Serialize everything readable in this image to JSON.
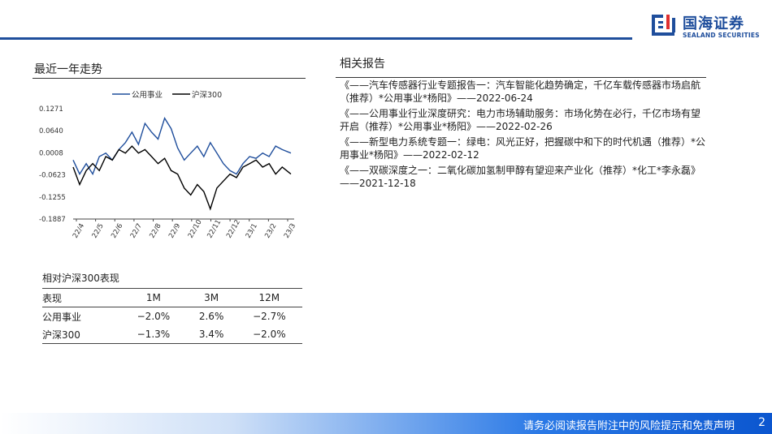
{
  "header": {
    "logo_cn": "国海证券",
    "logo_en": "SEALAND SECURITIES"
  },
  "trend_section": {
    "title": "最近一年走势"
  },
  "chart_data": {
    "type": "line",
    "legend_position": "top",
    "x_ticks": [
      "22/4",
      "22/5",
      "22/6",
      "22/7",
      "22/8",
      "22/9",
      "22/10",
      "22/11",
      "22/12",
      "23/1",
      "23/2",
      "23/3"
    ],
    "y_ticks": [
      "0.1271",
      "0.0640",
      "0.0008",
      "-0.0623",
      "-0.1255",
      "-0.1887"
    ],
    "ylim": [
      -0.1887,
      0.1271
    ],
    "grid": false,
    "series": [
      {
        "name": "公用事业",
        "color": "#1f4e9c",
        "x": [
          0,
          0.03,
          0.06,
          0.09,
          0.12,
          0.15,
          0.18,
          0.21,
          0.24,
          0.27,
          0.3,
          0.33,
          0.36,
          0.39,
          0.42,
          0.45,
          0.48,
          0.51,
          0.54,
          0.57,
          0.6,
          0.63,
          0.66,
          0.69,
          0.72,
          0.75,
          0.78,
          0.81,
          0.84,
          0.87,
          0.9,
          0.93,
          0.96,
          1.0
        ],
        "values": [
          -0.02,
          -0.06,
          -0.03,
          -0.06,
          -0.01,
          0.0,
          -0.02,
          0.01,
          0.03,
          0.06,
          0.025,
          0.085,
          0.06,
          0.04,
          0.1,
          0.07,
          0.015,
          -0.02,
          0.0,
          0.02,
          -0.01,
          0.03,
          0.0,
          -0.03,
          -0.05,
          -0.06,
          -0.03,
          -0.01,
          -0.015,
          0.0,
          -0.01,
          0.02,
          0.01,
          0.0
        ]
      },
      {
        "name": "沪深300",
        "color": "#000000",
        "x": [
          0,
          0.03,
          0.06,
          0.09,
          0.12,
          0.15,
          0.18,
          0.21,
          0.24,
          0.27,
          0.3,
          0.33,
          0.36,
          0.39,
          0.42,
          0.45,
          0.48,
          0.51,
          0.54,
          0.57,
          0.6,
          0.63,
          0.66,
          0.69,
          0.72,
          0.75,
          0.78,
          0.81,
          0.84,
          0.87,
          0.9,
          0.93,
          0.96,
          1.0
        ],
        "values": [
          -0.04,
          -0.09,
          -0.05,
          -0.03,
          -0.05,
          -0.01,
          -0.02,
          0.01,
          0.0,
          0.02,
          0.0,
          0.01,
          -0.01,
          -0.03,
          -0.015,
          -0.05,
          -0.06,
          -0.1,
          -0.12,
          -0.09,
          -0.11,
          -0.16,
          -0.1,
          -0.08,
          -0.06,
          -0.07,
          -0.04,
          -0.03,
          -0.02,
          -0.04,
          -0.03,
          -0.06,
          -0.04,
          -0.06
        ]
      }
    ]
  },
  "performance": {
    "title": "相对沪深300表现",
    "headers": [
      "表现",
      "1M",
      "3M",
      "12M"
    ],
    "rows": [
      [
        "公用事业",
        "−2.0%",
        "2.6%",
        "−2.7%"
      ],
      [
        "沪深300",
        "−1.3%",
        "3.4%",
        "−2.0%"
      ]
    ]
  },
  "reports": {
    "title": "相关报告",
    "items": [
      "《——汽车传感器行业专题报告一：汽车智能化趋势确定，千亿车载传感器市场启航（推荐）*公用事业*杨阳》——2022-06-24",
      "《——公用事业行业深度研究：电力市场辅助服务：市场化势在必行，千亿市场有望开启（推荐）*公用事业*杨阳》——2022-02-26",
      "《——新型电力系统专题一：绿电：风光正好，把握碳中和下的时代机遇（推荐）*公用事业*杨阳》——2022-02-12",
      "《——双碳深度之一：二氧化碳加氢制甲醇有望迎来产业化（推荐）*化工*李永磊》——2021-12-18"
    ]
  },
  "footer": {
    "disclaimer": "请务必阅读报告附注中的风险提示和免责声明",
    "page": "2"
  }
}
